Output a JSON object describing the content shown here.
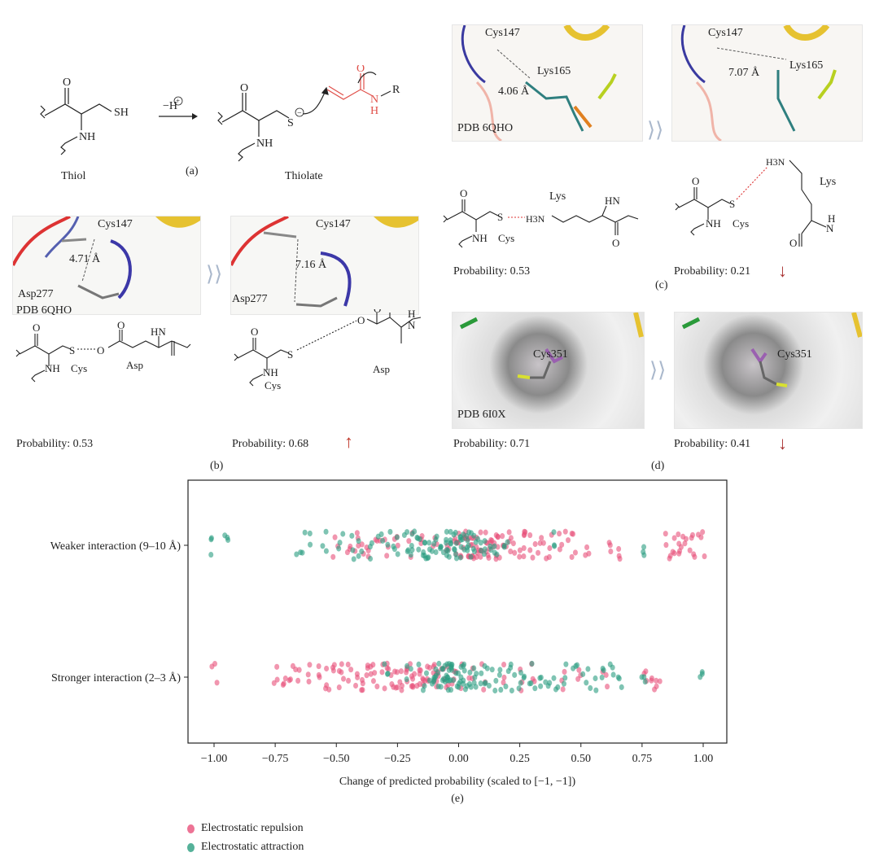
{
  "panel_a": {
    "reagent": "−H",
    "charge_plus": "+",
    "charge_minus": "−",
    "left": {
      "o": "O",
      "sh": "SH",
      "nh": "NH",
      "name": "Thiol"
    },
    "right": {
      "o": "O",
      "s": "S",
      "nh": "NH",
      "o2": "O",
      "n": "N",
      "h": "H",
      "r": "R",
      "name": "Thiolate"
    },
    "caption": "(a)",
    "warhead_color": "#e0504a"
  },
  "panel_b": {
    "left_image": {
      "cys": "Cys147",
      "distance": "4.71 Å",
      "asp": "Asp277",
      "pdb": "PDB 6QHO"
    },
    "right_image": {
      "cys": "Cys147",
      "distance": "7.16 Å",
      "asp": "Asp277"
    },
    "left_struct": {
      "o": "O",
      "s": "S",
      "o2": "O",
      "o3": "O",
      "hn": "HN",
      "nh": "NH",
      "cys": "Cys",
      "asp": "Asp"
    },
    "right_struct": {
      "o": "O",
      "s": "S",
      "o2": "O",
      "o3": "O",
      "h": "H",
      "n": "N",
      "nh": "NH",
      "cys": "Cys",
      "asp": "Asp"
    },
    "left_probability": "Probability: 0.53",
    "right_probability": "Probability: 0.68",
    "change": "up",
    "caption": "(b)"
  },
  "panel_c": {
    "left_image": {
      "cys": "Cys147",
      "distance": "4.06 Å",
      "lys": "Lys165",
      "pdb": "PDB 6QHO"
    },
    "right_image": {
      "cys": "Cys147",
      "distance": "7.07 Å",
      "lys": "Lys165"
    },
    "left_struct": {
      "o": "O",
      "s": "S",
      "h3n": "H3N",
      "lys": "Lys",
      "hn": "HN",
      "o2": "O",
      "nh": "NH",
      "cys": "Cys"
    },
    "right_struct": {
      "o": "O",
      "s": "S",
      "h3n": "H3N",
      "lys": "Lys",
      "h": "H",
      "n": "N",
      "o2": "O",
      "nh": "NH",
      "cys": "Cys"
    },
    "left_probability": "Probability: 0.53",
    "right_probability": "Probability: 0.21",
    "change": "down",
    "caption": "(c)"
  },
  "panel_d": {
    "left_image": {
      "cys": "Cys351",
      "pdb": "PDB 6I0X"
    },
    "right_image": {
      "cys": "Cys351"
    },
    "left_probability": "Probability: 0.71",
    "right_probability": "Probability: 0.41",
    "change": "down",
    "caption": "(d)"
  },
  "colors": {
    "up_arrow": "#c0392b",
    "down_arrow": "#a93232",
    "chevron": "#aab8cc"
  },
  "chart_data": {
    "type": "scatter",
    "subtype": "strip",
    "caption": "(e)",
    "xlabel": "Change of predicted probability (scaled to [−1, −1])",
    "xlim": [
      -1.1,
      1.1
    ],
    "xticks": [
      "-1.00",
      "-0.75",
      "-0.50",
      "-0.25",
      "0.00",
      "0.25",
      "0.50",
      "0.75",
      "1.00"
    ],
    "categories": [
      "Weaker interaction (9–10 Å)",
      "Stronger interaction (2–3 Å)"
    ],
    "grid": false,
    "legend_placement": "bottom-left",
    "series": [
      {
        "name": "Electrostatic repulsion",
        "color": "#e8507a",
        "values": {
          "Weaker interaction (9–10 Å)": [
            -0.5,
            -0.45,
            -0.42,
            -0.4,
            -0.38,
            -0.33,
            -0.3,
            -0.25,
            -0.2,
            -0.15,
            -0.1,
            -0.05,
            -0.02,
            0,
            0.01,
            0.02,
            0.03,
            0.04,
            0.05,
            0.06,
            0.07,
            0.08,
            0.09,
            0.1,
            0.11,
            0.12,
            0.13,
            0.14,
            0.15,
            0.16,
            0.18,
            0.2,
            0.22,
            0.24,
            0.26,
            0.28,
            0.3,
            0.32,
            0.35,
            0.38,
            0.42,
            0.45,
            0.47,
            0.52,
            0.62,
            0.65,
            0.85,
            0.87,
            0.89,
            0.9,
            0.92,
            0.95,
            0.97,
            1.0
          ],
          "Stronger interaction (2–3 Å)": [
            -1.0,
            -0.75,
            -0.72,
            -0.68,
            -0.66,
            -0.62,
            -0.58,
            -0.55,
            -0.52,
            -0.5,
            -0.47,
            -0.44,
            -0.42,
            -0.4,
            -0.38,
            -0.36,
            -0.34,
            -0.32,
            -0.3,
            -0.28,
            -0.26,
            -0.25,
            -0.24,
            -0.22,
            -0.2,
            -0.19,
            -0.18,
            -0.16,
            -0.15,
            -0.14,
            -0.12,
            -0.1,
            -0.09,
            -0.08,
            -0.06,
            -0.05,
            -0.03,
            0.0,
            0.05,
            0.1,
            0.18,
            0.25,
            0.3,
            0.42,
            0.5,
            0.6,
            0.77,
            0.79,
            0.81
          ]
        }
      },
      {
        "name": "Electrostatic attraction",
        "color": "#2a9d80",
        "values": {
          "Weaker interaction (9–10 Å)": [
            -1.0,
            -0.95,
            -0.65,
            -0.62,
            -0.55,
            -0.48,
            -0.44,
            -0.4,
            -0.36,
            -0.32,
            -0.28,
            -0.25,
            -0.22,
            -0.2,
            -0.18,
            -0.16,
            -0.15,
            -0.14,
            -0.13,
            -0.12,
            -0.1,
            -0.08,
            -0.06,
            -0.05,
            -0.04,
            -0.03,
            -0.02,
            -0.01,
            0,
            0.01,
            0.02,
            0.03,
            0.04,
            0.05,
            0.06,
            0.08,
            0.1,
            0.12,
            0.15,
            0.2,
            0.4,
            0.75
          ],
          "Stronger interaction (2–3 Å)": [
            -0.3,
            -0.2,
            -0.15,
            -0.12,
            -0.1,
            -0.09,
            -0.08,
            -0.07,
            -0.06,
            -0.05,
            -0.05,
            -0.04,
            -0.04,
            -0.03,
            -0.02,
            -0.01,
            0,
            0.01,
            0.02,
            0.03,
            0.04,
            0.06,
            0.08,
            0.1,
            0.12,
            0.15,
            0.18,
            0.2,
            0.22,
            0.25,
            0.28,
            0.3,
            0.33,
            0.36,
            0.4,
            0.44,
            0.48,
            0.52,
            0.55,
            0.58,
            0.62,
            0.66,
            0.75,
            1.0
          ]
        }
      }
    ]
  }
}
